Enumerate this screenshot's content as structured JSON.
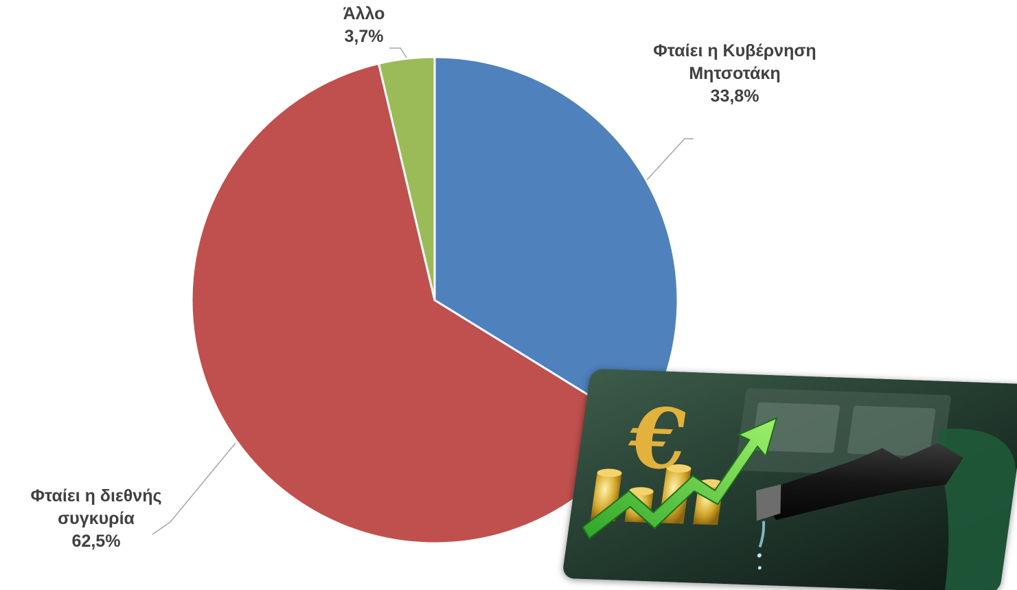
{
  "chart_data": {
    "type": "pie",
    "title": "",
    "start_angle_deg": 0,
    "direction": "clockwise",
    "slices": [
      {
        "label_lines": [
          "Φταίει η Κυβέρνηση",
          "Μητσοτάκη"
        ],
        "value": 33.8,
        "value_label": "33,8%",
        "color": "#4F81BD"
      },
      {
        "label_lines": [
          "Φταίει η διεθνής",
          "συγκυρία"
        ],
        "value": 62.5,
        "value_label": "62,5%",
        "color": "#C0504D"
      },
      {
        "label_lines": [
          "Άλλο"
        ],
        "value": 3.7,
        "value_label": "3,7%",
        "color": "#9BBB59"
      }
    ],
    "legend": "none",
    "grid": false
  },
  "decor": {
    "image_icon": "fuel-price-rising-photo"
  }
}
